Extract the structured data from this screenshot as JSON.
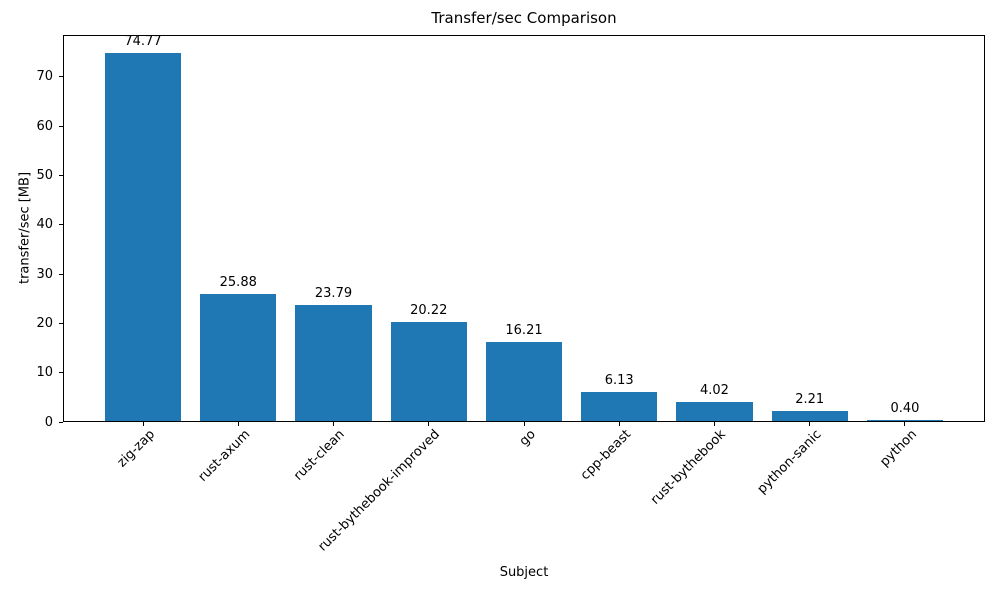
{
  "chart_data": {
    "type": "bar",
    "title": "Transfer/sec Comparison",
    "xlabel": "Subject",
    "ylabel": "transfer/sec [MB]",
    "categories": [
      "zig-zap",
      "rust-axum",
      "rust-clean",
      "rust-bythebook-improved",
      "go",
      "cpp-beast",
      "rust-bythebook",
      "python-sanic",
      "python"
    ],
    "values": [
      74.77,
      25.88,
      23.79,
      20.22,
      16.21,
      6.13,
      4.02,
      2.21,
      0.4
    ],
    "bar_labels": [
      "74.77",
      "25.88",
      "23.79",
      "20.22",
      "16.21",
      "6.13",
      "4.02",
      "2.21",
      "0.40"
    ],
    "yticks": [
      0,
      10,
      20,
      30,
      40,
      50,
      60,
      70
    ],
    "ytick_labels": [
      "0",
      "10",
      "20",
      "30",
      "40",
      "50",
      "60",
      "70"
    ],
    "ylim": [
      0,
      78.5
    ],
    "xlim": [
      -0.84,
      8.84
    ],
    "bar_width": 0.8,
    "bar_color": "#1f77b4",
    "axis_color": "#000000",
    "text_color": "#000000",
    "background_color": "#ffffff",
    "xtick_rotation_deg": 45,
    "grid": false,
    "legend": "none"
  }
}
